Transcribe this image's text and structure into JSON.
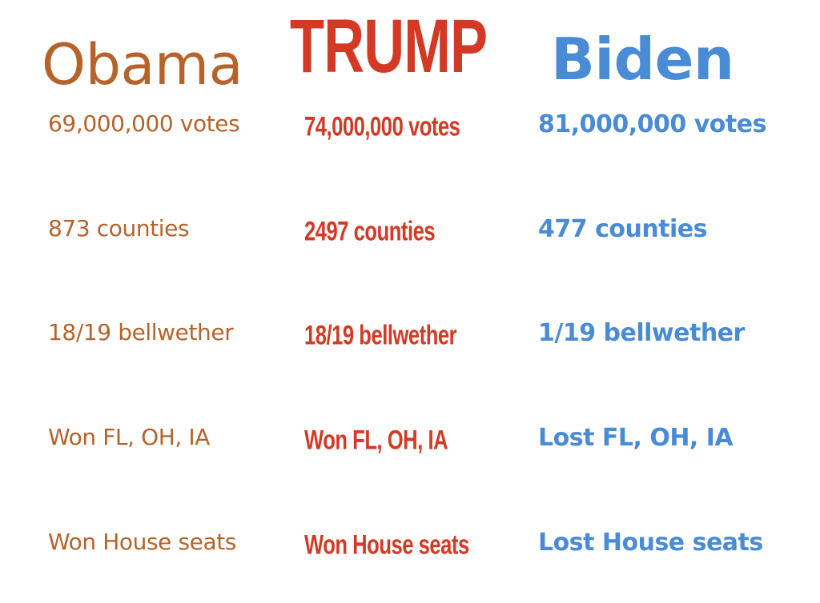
{
  "colors": {
    "obama": "#b5632b",
    "trump": "#d33a25",
    "biden": "#4a8bd6"
  },
  "columns": [
    {
      "name": "Obama",
      "rows": [
        "69,000,000 votes",
        "873 counties",
        "18/19 bellwether",
        "Won FL, OH, IA",
        "Won House seats"
      ]
    },
    {
      "name": "TRUMP",
      "rows": [
        "74,000,000 votes",
        "2497 counties",
        "18/19 bellwether",
        "Won FL, OH, IA",
        "Won House seats"
      ]
    },
    {
      "name": "Biden",
      "rows": [
        "81,000,000 votes",
        "477 counties",
        "1/19 bellwether",
        "Lost FL, OH, IA",
        "Lost House seats"
      ]
    }
  ]
}
